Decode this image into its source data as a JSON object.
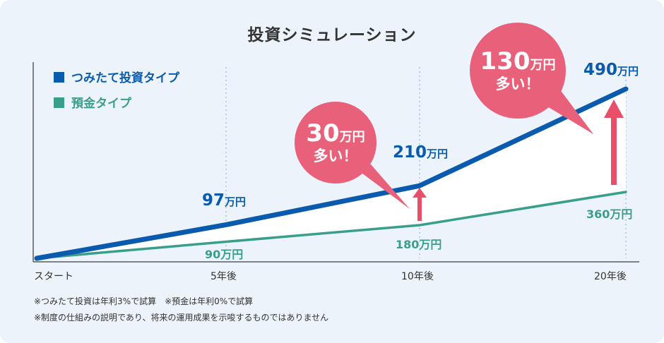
{
  "chart_data": {
    "type": "line",
    "title": "投資シミュレーション",
    "categories": [
      "スタート",
      "5年後",
      "10年後",
      "20年後"
    ],
    "x": [
      0,
      5,
      10,
      20
    ],
    "series": [
      {
        "name": "つみたて投資タイプ",
        "values": [
          0,
          97,
          210,
          490
        ],
        "color": "#0a5bae"
      },
      {
        "name": "預金タイプ",
        "values": [
          0,
          90,
          180,
          360
        ],
        "color": "#3a9e8c"
      }
    ],
    "data_labels": {
      "invest": [
        {
          "num": "97",
          "unit": "万円"
        },
        {
          "num": "210",
          "unit": "万円"
        },
        {
          "num": "490",
          "unit": "万円"
        }
      ],
      "deposit": [
        {
          "text": "90万円"
        },
        {
          "text": "180万円"
        },
        {
          "text": "360万円"
        }
      ]
    },
    "callouts": [
      {
        "num": "30",
        "unit": "万円",
        "text": "多い！"
      },
      {
        "num": "130",
        "unit": "万円",
        "text": "多い！"
      }
    ],
    "legend_position": "top-left",
    "grid": "dotted vertical lines at 5年後, 10年後, 20年後"
  },
  "notes": [
    "※つみたて投資は年利3%で試算　※預金は年利0%で試算",
    "※制度の仕組みの説明であり、将来の運用成果を示唆するものではありません"
  ],
  "colors": {
    "background": "#edf3fa",
    "invest": "#0a5bae",
    "deposit": "#3a9e8c",
    "accent": "#e8506a",
    "callout": "#e86079"
  }
}
